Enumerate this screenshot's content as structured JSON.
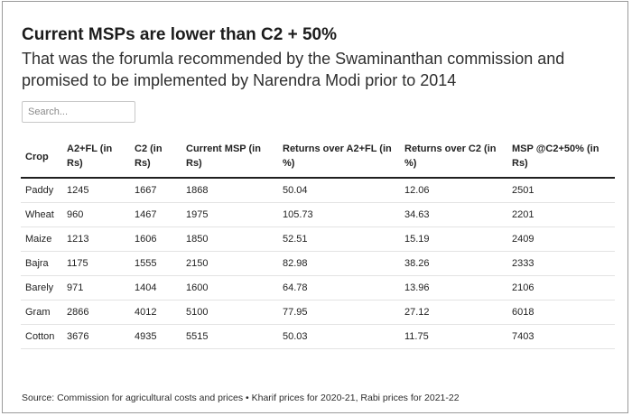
{
  "title": "Current MSPs are lower than C2 + 50%",
  "subtitle": "That was the forumla recommended by the Swaminanthan commission and promised to be implemented by Narendra Modi prior to 2014",
  "search": {
    "placeholder": "Search...",
    "value": ""
  },
  "footer": {
    "source": "Source: Commission for agricultural costs and prices • Kharif prices for 2020-21, Rabi prices for 2021-22"
  },
  "chart_data": {
    "type": "table",
    "columns": [
      "Crop",
      "A2+FL (in Rs)",
      "C2 (in Rs)",
      "Current MSP (in Rs)",
      "Returns over A2+FL (in %)",
      "Returns over C2 (in %)",
      "MSP @C2+50% (in Rs)"
    ],
    "rows": [
      [
        "Paddy",
        "1245",
        "1667",
        "1868",
        "50.04",
        "12.06",
        "2501"
      ],
      [
        "Wheat",
        "960",
        "1467",
        "1975",
        "105.73",
        "34.63",
        "2201"
      ],
      [
        "Maize",
        "1213",
        "1606",
        "1850",
        "52.51",
        "15.19",
        "2409"
      ],
      [
        "Bajra",
        "1175",
        "1555",
        "2150",
        "82.98",
        "38.26",
        "2333"
      ],
      [
        "Barely",
        "971",
        "1404",
        "1600",
        "64.78",
        "13.96",
        "2106"
      ],
      [
        "Gram",
        "2866",
        "4012",
        "5100",
        "77.95",
        "27.12",
        "6018"
      ],
      [
        "Cotton",
        "3676",
        "4935",
        "5515",
        "50.03",
        "11.75",
        "7403"
      ]
    ]
  }
}
